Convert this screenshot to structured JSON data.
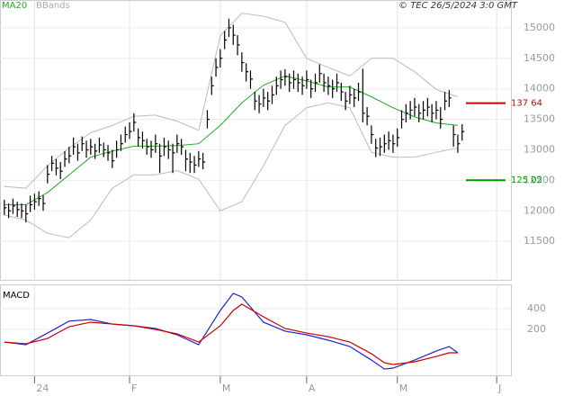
{
  "header": {
    "copyright": "© TEC 26/5/2024 3:0 GMT"
  },
  "chart_data": [
    {
      "type": "ohlc",
      "x": [
        0,
        1,
        2,
        3,
        4,
        5,
        6,
        7,
        8,
        9,
        10,
        11,
        12,
        13,
        14,
        15,
        16,
        17,
        18,
        19,
        20,
        21,
        22,
        23,
        24,
        25,
        26,
        27,
        28,
        29,
        30,
        31,
        32,
        33,
        34,
        35,
        36,
        37,
        38,
        39,
        40,
        41,
        42,
        43,
        44,
        45,
        46,
        47,
        48,
        49,
        50,
        51,
        52,
        53,
        54,
        55,
        56,
        57,
        58,
        59,
        60,
        61,
        62,
        63,
        64,
        65,
        66,
        67,
        68,
        69,
        70,
        71,
        72,
        73,
        74,
        75,
        76,
        77,
        78,
        79,
        80,
        81,
        82,
        83,
        84,
        85,
        86,
        87,
        88,
        89,
        90,
        91,
        92,
        93,
        94,
        95,
        96,
        97,
        98,
        99,
        100,
        101,
        102,
        103,
        104,
        105,
        106
      ],
      "close": [
        12050,
        12000,
        12080,
        12020,
        12000,
        11950,
        12100,
        12150,
        12200,
        12120,
        12600,
        12780,
        12700,
        12650,
        12850,
        12900,
        13050,
        12950,
        13100,
        13000,
        13050,
        12980,
        13080,
        13000,
        12950,
        12820,
        13000,
        13100,
        13250,
        13300,
        13450,
        13200,
        13150,
        13050,
        13000,
        13100,
        12900,
        13050,
        13000,
        12950,
        13100,
        13050,
        12850,
        12800,
        12750,
        12850,
        12800,
        13500,
        14050,
        14350,
        14500,
        14800,
        15000,
        14880,
        14720,
        14430,
        14280,
        14160,
        13800,
        13750,
        13850,
        13800,
        13900,
        14050,
        14150,
        14200,
        14100,
        14150,
        14100,
        14050,
        14150,
        14000,
        14100,
        14250,
        14100,
        14050,
        14000,
        14100,
        13950,
        13800,
        13900,
        13850,
        13950,
        13600,
        13550,
        13250,
        13030,
        13050,
        13100,
        13150,
        13100,
        13200,
        13500,
        13600,
        13650,
        13700,
        13600,
        13650,
        13700,
        13600,
        13650,
        13500,
        13800,
        13850,
        13250,
        13100,
        13300
      ],
      "high": [
        12180,
        12120,
        12200,
        12150,
        12120,
        12100,
        12250,
        12280,
        12320,
        12250,
        12750,
        12900,
        12850,
        12800,
        12980,
        13050,
        13200,
        13100,
        13220,
        13150,
        13180,
        13100,
        13200,
        13120,
        13080,
        13000,
        13150,
        13250,
        13380,
        13450,
        13600,
        13350,
        13300,
        13180,
        13150,
        13250,
        13100,
        13200,
        13150,
        13100,
        13250,
        13180,
        13000,
        12950,
        12900,
        12980,
        12950,
        13650,
        14200,
        14500,
        14650,
        14950,
        15150,
        15050,
        14880,
        14600,
        14420,
        14300,
        13950,
        13900,
        14000,
        13950,
        14050,
        14200,
        14300,
        14320,
        14250,
        14300,
        14250,
        14200,
        14300,
        14150,
        14250,
        14400,
        14250,
        14200,
        14150,
        14250,
        14100,
        13950,
        14050,
        14000,
        14100,
        14330,
        13700,
        13400,
        13180,
        13200,
        13250,
        13300,
        13250,
        13350,
        13650,
        13750,
        13800,
        13850,
        13750,
        13800,
        13850,
        13750,
        13800,
        13700,
        13950,
        13980,
        13400,
        13250,
        13420
      ],
      "low": [
        11930,
        11880,
        11950,
        11900,
        11880,
        11810,
        11980,
        12020,
        12080,
        12000,
        12450,
        12650,
        12580,
        12520,
        12720,
        12780,
        12920,
        12820,
        12980,
        12870,
        12920,
        12850,
        12950,
        12880,
        12820,
        12700,
        12870,
        12980,
        13120,
        13180,
        13300,
        13050,
        13020,
        12920,
        12870,
        12950,
        12620,
        12900,
        12850,
        12620,
        12950,
        12920,
        12650,
        12620,
        12620,
        12720,
        12680,
        13350,
        13900,
        14200,
        14350,
        14650,
        14850,
        14720,
        14550,
        14280,
        14120,
        14000,
        13650,
        13600,
        13700,
        13650,
        13750,
        13900,
        14000,
        14050,
        13950,
        14000,
        13950,
        13900,
        14000,
        13850,
        13950,
        14100,
        13950,
        13900,
        13850,
        13950,
        13800,
        13650,
        13750,
        13700,
        13800,
        13450,
        13400,
        13100,
        12880,
        12900,
        12950,
        13000,
        12950,
        13050,
        13350,
        13450,
        13500,
        13550,
        13450,
        13500,
        13550,
        13450,
        13500,
        13350,
        13650,
        13700,
        13050,
        12950,
        13150
      ],
      "color": "#000000",
      "xlim": [
        -1,
        117.3
      ],
      "ylim": [
        10853,
        15456
      ],
      "yticks": [
        11500,
        12000,
        12500,
        13000,
        13500,
        14000,
        14500,
        15000
      ],
      "xticks": [
        {
          "value": 7,
          "label": "24"
        },
        {
          "value": 29,
          "label": "F"
        },
        {
          "value": 50,
          "label": "M"
        },
        {
          "value": 70,
          "label": "A"
        },
        {
          "value": 91,
          "label": "M"
        },
        {
          "value": 114,
          "label": "J"
        }
      ],
      "grid": true,
      "series": [
        {
          "name": "MA20",
          "color": "#22aa22",
          "x": [
            0,
            5,
            10,
            15,
            20,
            25,
            30,
            35,
            40,
            45,
            50,
            55,
            60,
            65,
            70,
            75,
            80,
            85,
            90,
            95,
            100,
            105
          ],
          "values": [
            12100,
            12100,
            12300,
            12590,
            12880,
            12980,
            13060,
            13060,
            13070,
            13100,
            13400,
            13770,
            14060,
            14210,
            14130,
            14030,
            14030,
            13870,
            13690,
            13540,
            13440,
            13400
          ]
        },
        {
          "name": "BBands",
          "color": "#bbbbbb",
          "x": [
            0,
            5,
            10,
            15,
            20,
            25,
            30,
            35,
            40,
            45,
            50,
            55,
            60,
            65,
            70,
            75,
            80,
            85,
            90,
            95,
            100,
            105
          ],
          "upper": [
            12400,
            12370,
            12740,
            13030,
            13280,
            13400,
            13550,
            13570,
            13470,
            13320,
            14870,
            15240,
            15190,
            15090,
            14500,
            14350,
            14210,
            14500,
            14500,
            14280,
            13990,
            13870
          ],
          "lower": [
            11930,
            11850,
            11630,
            11560,
            11850,
            12370,
            12590,
            12590,
            12660,
            12520,
            12000,
            12150,
            12740,
            13400,
            13690,
            13770,
            13690,
            12960,
            12880,
            12880,
            12960,
            13030
          ]
        }
      ],
      "levels": [
        {
          "value": 13764,
          "label": "137 64",
          "color": "#cc0000"
        },
        {
          "value": 12502,
          "label": "125 02",
          "color": "#009900"
        }
      ]
    },
    {
      "type": "line",
      "title": "MACD",
      "xlim": [
        -1,
        117.3
      ],
      "ylim": [
        -252,
        635
      ],
      "yticks": [
        200,
        400
      ],
      "x": [
        0,
        5,
        10,
        15,
        20,
        25,
        30,
        35,
        40,
        45,
        50,
        53,
        55,
        60,
        65,
        70,
        75,
        80,
        85,
        88,
        90,
        95,
        100,
        103,
        105
      ],
      "series": [
        {
          "color": "#2222cc",
          "values": [
            78,
            52,
            165,
            280,
            296,
            252,
            235,
            209,
            148,
            52,
            383,
            548,
            513,
            270,
            183,
            148,
            96,
            35,
            -96,
            -183,
            -174,
            -96,
            -9,
            35,
            -26
          ]
        },
        {
          "color": "#cc0000",
          "values": [
            78,
            61,
            113,
            226,
            270,
            252,
            235,
            200,
            157,
            78,
            235,
            383,
            444,
            322,
            209,
            165,
            130,
            78,
            -35,
            -122,
            -139,
            -113,
            -61,
            -26,
            -26
          ]
        }
      ]
    }
  ]
}
